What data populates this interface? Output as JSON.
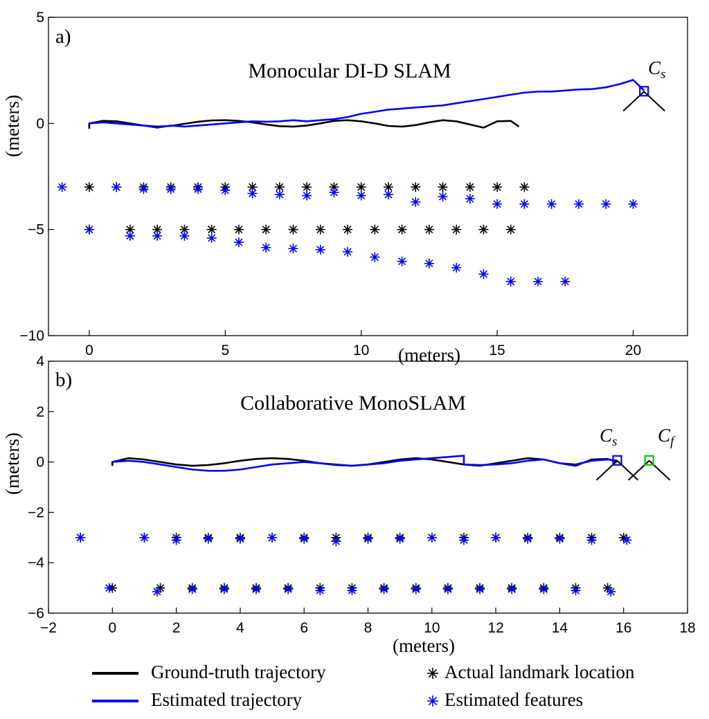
{
  "figure": {
    "legend": [
      {
        "label": "Ground-truth trajectory",
        "kind": "line",
        "color": "#000000"
      },
      {
        "label": "Estimated trajectory",
        "kind": "line",
        "color": "#0000ff"
      },
      {
        "label": "Actual landmark location",
        "kind": "star",
        "color": "#000000"
      },
      {
        "label": "Estimated features",
        "kind": "star",
        "color": "#0000ff"
      }
    ]
  },
  "chart_data": [
    {
      "type": "line+scatter",
      "panel_tag": "a)",
      "title": "Monocular DI-D SLAM",
      "xlabel": "(meters)",
      "ylabel": "(meters)",
      "xlim": [
        -1.5,
        22
      ],
      "ylim": [
        -10,
        5
      ],
      "xticks": [
        0,
        5,
        10,
        15,
        20
      ],
      "yticks": [
        5,
        0,
        -5,
        -10
      ],
      "ytick_labels": [
        "5",
        "0",
        "−5",
        "−10"
      ],
      "ground_truth": {
        "name": "Ground-truth trajectory",
        "color": "#000000",
        "x": [
          0,
          0,
          0.5,
          1,
          1.5,
          2,
          2.5,
          3,
          3.5,
          4,
          4.5,
          5,
          5.5,
          6,
          6.5,
          7,
          7.5,
          8,
          8.5,
          9,
          9.5,
          10,
          10.5,
          11,
          11.5,
          12,
          12.5,
          13,
          13.5,
          14,
          14.5,
          15,
          15.5,
          15.8
        ],
        "y": [
          -0.25,
          0,
          0.12,
          0.1,
          0.0,
          -0.1,
          -0.15,
          -0.12,
          -0.02,
          0.08,
          0.14,
          0.15,
          0.12,
          0.05,
          -0.05,
          -0.13,
          -0.15,
          -0.1,
          0.0,
          0.12,
          0.15,
          0.1,
          0.0,
          -0.12,
          -0.15,
          -0.08,
          0.05,
          0.15,
          0.1,
          -0.05,
          -0.2,
          0.1,
          0.12,
          -0.15
        ]
      },
      "estimated": {
        "name": "Estimated trajectory",
        "color": "#0000ff",
        "x": [
          0,
          0.5,
          1,
          1.5,
          2,
          2.5,
          3,
          3.5,
          4,
          4.5,
          5,
          5.5,
          6,
          6.5,
          7,
          7.5,
          8,
          8.5,
          9,
          9.5,
          10,
          10.5,
          11,
          11.5,
          12,
          12.5,
          13,
          13.5,
          14,
          14.5,
          15,
          15.5,
          16,
          16.5,
          17,
          17.5,
          18,
          18.5,
          19,
          19.5,
          20,
          20.4
        ],
        "y": [
          0,
          0.05,
          0.0,
          -0.05,
          -0.1,
          -0.2,
          -0.1,
          -0.15,
          -0.1,
          -0.05,
          0.0,
          0.05,
          0.1,
          0.08,
          0.1,
          0.15,
          0.1,
          0.15,
          0.2,
          0.3,
          0.45,
          0.55,
          0.65,
          0.7,
          0.75,
          0.8,
          0.85,
          0.95,
          1.05,
          1.15,
          1.25,
          1.35,
          1.45,
          1.5,
          1.5,
          1.55,
          1.6,
          1.62,
          1.7,
          1.85,
          2.05,
          1.55
        ]
      },
      "landmarks_actual": {
        "name": "Actual landmark location",
        "color": "#000000",
        "x": [
          0,
          1,
          2,
          3,
          4,
          5,
          6,
          7,
          8,
          9,
          10,
          11,
          12,
          13,
          14,
          15,
          16,
          0,
          1.5,
          2.5,
          3.5,
          4.5,
          5.5,
          6.5,
          7.5,
          8.5,
          9.5,
          10.5,
          11.5,
          12.5,
          13.5,
          14.5,
          15.5
        ],
        "y": [
          -3,
          -3,
          -3,
          -3,
          -3,
          -3,
          -3,
          -3,
          -3,
          -3,
          -3,
          -3,
          -3,
          -3,
          -3,
          -3,
          -3,
          -5,
          -5,
          -5,
          -5,
          -5,
          -5,
          -5,
          -5,
          -5,
          -5,
          -5,
          -5,
          -5,
          -5,
          -5,
          -5
        ]
      },
      "features_estimated": {
        "name": "Estimated features",
        "color": "#0000ff",
        "x": [
          -1,
          1,
          2,
          3,
          4,
          5,
          6,
          7,
          8,
          9,
          10,
          11,
          12,
          13,
          14,
          15,
          16,
          17,
          18,
          19,
          20,
          0,
          1.5,
          2.5,
          3.5,
          4.5,
          5.5,
          6.5,
          7.5,
          8.5,
          9.5,
          10.5,
          11.5,
          12.5,
          13.5,
          14.5,
          15.5,
          16.5,
          17.5
        ],
        "y": [
          -3,
          -3,
          -3.1,
          -3.1,
          -3.1,
          -3.15,
          -3.3,
          -3.35,
          -3.4,
          -3.25,
          -3.4,
          -3.35,
          -3.7,
          -3.45,
          -3.55,
          -3.8,
          -3.8,
          -3.8,
          -3.8,
          -3.8,
          -3.8,
          -5,
          -5.3,
          -5.3,
          -5.3,
          -5.4,
          -5.6,
          -5.85,
          -5.9,
          -5.95,
          -6.05,
          -6.3,
          -6.5,
          -6.6,
          -6.8,
          -7.1,
          -7.45,
          -7.45,
          -7.45
        ]
      },
      "cameras": [
        {
          "label": "C",
          "sub": "s",
          "x": 20.4,
          "y": 1.5,
          "color": "#0000ff"
        }
      ]
    },
    {
      "type": "line+scatter",
      "panel_tag": "b)",
      "title": "Collaborative MonoSLAM",
      "xlabel": "(meters)",
      "ylabel": "(meters)",
      "xlim": [
        -2,
        18
      ],
      "ylim": [
        -6,
        4
      ],
      "xticks": [
        -2,
        0,
        2,
        4,
        6,
        8,
        10,
        12,
        14,
        16,
        18
      ],
      "xtick_labels": [
        "−2",
        "0",
        "2",
        "4",
        "6",
        "8",
        "10",
        "12",
        "14",
        "16",
        "18"
      ],
      "yticks": [
        4,
        2,
        0,
        -2,
        -4,
        -6
      ],
      "ytick_labels": [
        "4",
        "2",
        "0",
        "−2",
        "−4",
        "−6"
      ],
      "ground_truth": {
        "name": "Ground-truth trajectory",
        "color": "#000000",
        "x": [
          0,
          0,
          0.5,
          1,
          1.5,
          2,
          2.5,
          3,
          3.5,
          4,
          4.5,
          5,
          5.5,
          6,
          6.5,
          7,
          7.5,
          8,
          8.5,
          9,
          9.5,
          10,
          10.5,
          11,
          11.5,
          12,
          12.5,
          13,
          13.5,
          14,
          14.5,
          15,
          15.5,
          15.8
        ],
        "y": [
          -0.15,
          0,
          0.15,
          0.1,
          0.0,
          -0.1,
          -0.15,
          -0.12,
          -0.05,
          0.05,
          0.12,
          0.15,
          0.12,
          0.05,
          -0.05,
          -0.12,
          -0.15,
          -0.1,
          0.0,
          0.1,
          0.15,
          0.1,
          0.0,
          -0.1,
          -0.15,
          -0.05,
          0.05,
          0.15,
          0.1,
          -0.05,
          -0.15,
          0.1,
          0.12,
          0.0
        ]
      },
      "estimated": {
        "name": "Estimated trajectory",
        "color": "#0000ff",
        "x": [
          0,
          0.5,
          1,
          1.5,
          2,
          2.5,
          3,
          3.5,
          4,
          4.5,
          5,
          5.5,
          6,
          6.5,
          7,
          7.5,
          8,
          8.5,
          9,
          9.5,
          10,
          10.5,
          11,
          11,
          11.5,
          12,
          12.5,
          13,
          13.5,
          14,
          14.5,
          15,
          15.5,
          15.8
        ],
        "y": [
          0,
          0.05,
          0.0,
          -0.1,
          -0.2,
          -0.3,
          -0.35,
          -0.35,
          -0.3,
          -0.2,
          -0.1,
          -0.05,
          0.0,
          -0.05,
          -0.1,
          -0.15,
          -0.1,
          -0.05,
          0.05,
          0.1,
          0.15,
          0.2,
          0.25,
          -0.1,
          -0.12,
          -0.1,
          -0.05,
          0.05,
          0.1,
          -0.05,
          -0.1,
          0.05,
          0.1,
          0.05
        ]
      },
      "landmarks_actual": {
        "name": "Actual landmark location",
        "color": "#000000",
        "x": [
          -1,
          1,
          2,
          3,
          4,
          5,
          6,
          7,
          8,
          9,
          10,
          11,
          12,
          13,
          14,
          15,
          16,
          0,
          1.5,
          2.5,
          3.5,
          4.5,
          5.5,
          6.5,
          7.5,
          8.5,
          9.5,
          10.5,
          11.5,
          12.5,
          13.5,
          14.5,
          15.5
        ],
        "y": [
          -3,
          -3,
          -3,
          -3,
          -3,
          -3,
          -3,
          -3,
          -3,
          -3,
          -3,
          -3,
          -3,
          -3,
          -3,
          -3,
          -3,
          -5,
          -5,
          -5,
          -5,
          -5,
          -5,
          -5,
          -5,
          -5,
          -5,
          -5,
          -5,
          -5,
          -5,
          -5,
          -5
        ]
      },
      "features_estimated": {
        "name": "Estimated features",
        "color": "#0000ff",
        "x": [
          -1,
          1,
          2,
          3,
          4,
          5,
          6,
          7,
          8,
          9,
          10,
          11,
          12,
          13,
          14,
          15,
          16.1,
          -0.1,
          1.4,
          2.5,
          3.5,
          4.5,
          5.5,
          6.5,
          7.5,
          8.5,
          9.5,
          10.5,
          11.5,
          12.5,
          13.5,
          14.5,
          15.6
        ],
        "y": [
          -3,
          -3,
          -3.1,
          -3.05,
          -3.05,
          -3,
          -3.05,
          -3.15,
          -3.05,
          -3.05,
          -3,
          -3.1,
          -3,
          -3.05,
          -3.05,
          -3.1,
          -3.1,
          -5,
          -5.15,
          -5.05,
          -5.05,
          -5.05,
          -5.05,
          -5.1,
          -5.1,
          -5.05,
          -5.05,
          -5.05,
          -5.05,
          -5.05,
          -5.05,
          -5.1,
          -5.15
        ]
      },
      "cameras": [
        {
          "label": "C",
          "sub": "s",
          "x": 15.8,
          "y": 0.05,
          "color": "#0000ff"
        },
        {
          "label": "C",
          "sub": "f",
          "x": 16.8,
          "y": 0.05,
          "color": "#00cc00"
        }
      ]
    }
  ]
}
